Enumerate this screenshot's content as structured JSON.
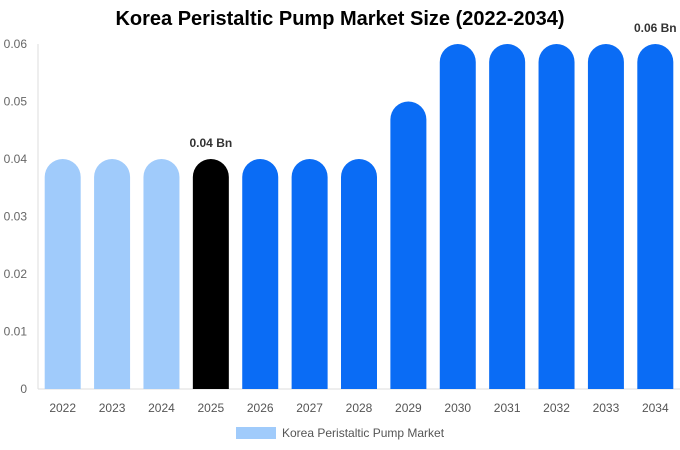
{
  "chart_data": {
    "type": "bar",
    "title": "Korea Peristaltic Pump Market Size (2022-2034)",
    "xlabel": "",
    "ylabel": "",
    "categories": [
      "2022",
      "2023",
      "2024",
      "2025",
      "2026",
      "2027",
      "2028",
      "2029",
      "2030",
      "2031",
      "2032",
      "2033",
      "2034"
    ],
    "series": [
      {
        "name": "Korea Peristaltic Pump Market",
        "values": [
          0.04,
          0.04,
          0.04,
          0.04,
          0.04,
          0.04,
          0.04,
          0.05,
          0.06,
          0.06,
          0.06,
          0.06,
          0.06
        ]
      }
    ],
    "bar_colors": [
      "#a0cbfb",
      "#a0cbfb",
      "#a0cbfb",
      "#000000",
      "#0a6cf5",
      "#0a6cf5",
      "#0a6cf5",
      "#0a6cf5",
      "#0a6cf5",
      "#0a6cf5",
      "#0a6cf5",
      "#0a6cf5",
      "#0a6cf5"
    ],
    "data_labels": [
      {
        "index": 3,
        "text": "0.04 Bn"
      },
      {
        "index": 12,
        "text": "0.06 Bn"
      }
    ],
    "ylim": [
      0,
      0.06
    ],
    "yticks": [
      "0",
      "0.01",
      "0.02",
      "0.03",
      "0.04",
      "0.05",
      "0.06"
    ],
    "grid": false,
    "legend_position": "bottom",
    "legend_color": "#a0cbfb"
  }
}
